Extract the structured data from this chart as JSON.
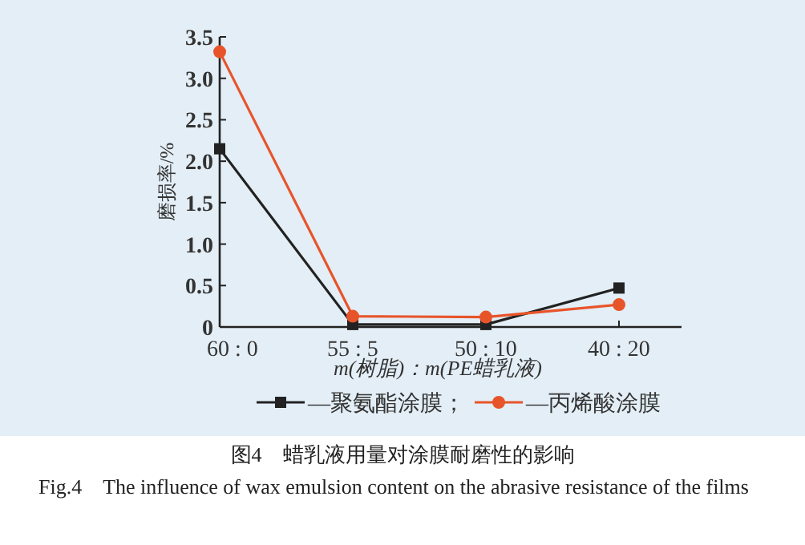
{
  "chart_data": {
    "type": "line",
    "title": "图4　蜡乳液用量对涂膜耐磨性的影响",
    "xlabel": "m(树脂)：m(PE蜡乳液)",
    "ylabel": "磨损率/%",
    "annotations": [
      "Fig.4　The influence of wax emulsion content on the abrasive resistance of the films"
    ],
    "categories": [
      "60 : 0",
      "55 : 5",
      "50 : 10",
      "40 : 20"
    ],
    "series": [
      {
        "name": "—聚氨酯涂膜；",
        "color": "#222222",
        "marker": "square",
        "values": [
          2.15,
          0.03,
          0.03,
          0.47
        ]
      },
      {
        "name": "—丙烯酸涂膜",
        "color": "#e8542a",
        "marker": "circle",
        "values": [
          3.32,
          0.13,
          0.12,
          0.27
        ]
      }
    ],
    "ylim": [
      0,
      3.5
    ],
    "yticks": [
      {
        "value": 0,
        "label": "0"
      },
      {
        "value": 0.5,
        "label": "0.5"
      },
      {
        "value": 1,
        "label": "1.0"
      },
      {
        "value": 1.5,
        "label": "1.5"
      },
      {
        "value": 2,
        "label": "2.0"
      },
      {
        "value": 2.5,
        "label": "2.5"
      },
      {
        "value": 3,
        "label": "3.0"
      },
      {
        "value": 3.5,
        "label": "3.5"
      }
    ],
    "legend": "bottom",
    "grid": false
  }
}
